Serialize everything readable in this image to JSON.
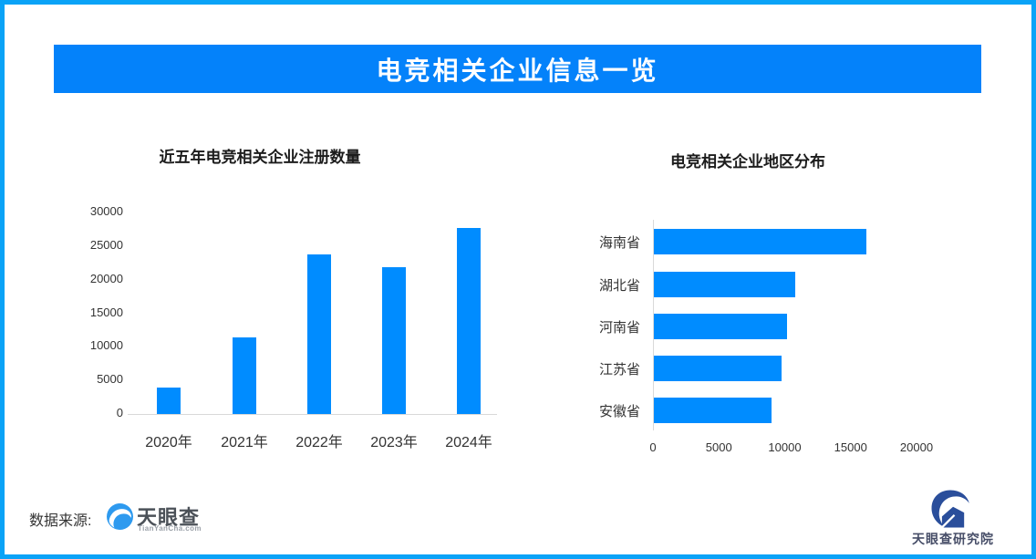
{
  "banner": {
    "title": "电竞相关企业信息一览"
  },
  "colors": {
    "frame_border": "#0AA3F7",
    "banner_bg": "#0482FA",
    "bar_blue": "#008CFF",
    "axis_gray": "#D9D9D9"
  },
  "chart_data": [
    {
      "type": "bar",
      "orientation": "vertical",
      "title": "近五年电竞相关企业注册数量",
      "categories": [
        "2020年",
        "2021年",
        "2022年",
        "2023年",
        "2024年"
      ],
      "values": [
        3900,
        11400,
        23800,
        21900,
        27700
      ],
      "ylim": [
        0,
        30000
      ],
      "yticks": [
        0,
        5000,
        10000,
        15000,
        20000,
        25000,
        30000
      ],
      "xlabel": "",
      "ylabel": "",
      "grid": false,
      "legend": false,
      "bar_color": "#008CFF",
      "axis_color": "#D9D9D9"
    },
    {
      "type": "bar",
      "orientation": "horizontal",
      "title": "电竞相关企业地区分布",
      "categories": [
        "海南省",
        "湖北省",
        "河南省",
        "江苏省",
        "安徽省"
      ],
      "values": [
        16100,
        10700,
        10100,
        9700,
        8900
      ],
      "xlim": [
        0,
        20000
      ],
      "xticks": [
        0,
        5000,
        10000,
        15000,
        20000
      ],
      "xlabel": "",
      "ylabel": "",
      "grid": false,
      "legend": false,
      "bar_color": "#008CFF",
      "axis_color": "#D9D9D9"
    }
  ],
  "footer": {
    "source_label": "数据来源:",
    "tyc_name": "天眼查",
    "tyc_domain": "TianYanCha.com",
    "institute_name": "天眼查研究院"
  }
}
